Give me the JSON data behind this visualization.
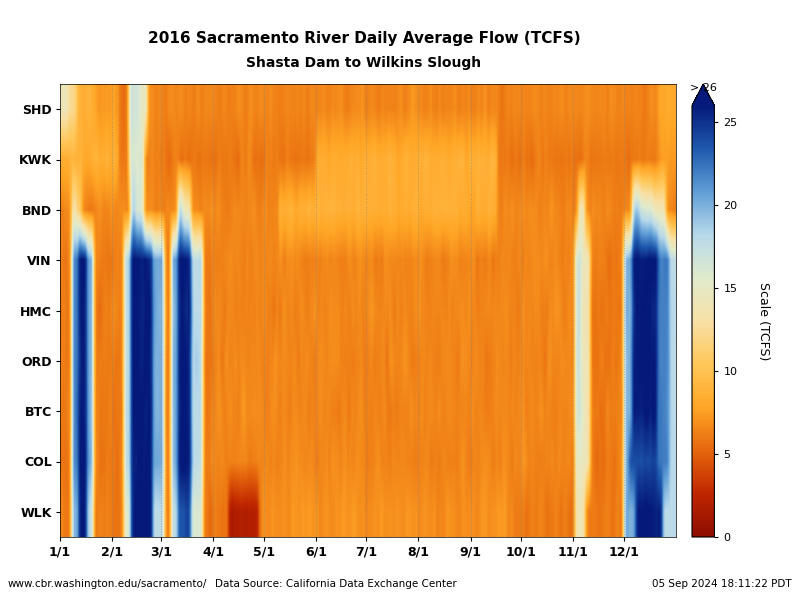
{
  "title_line1": "2016 Sacramento River Daily Average Flow (TCFS)",
  "title_line2": "Shasta Dam to Wilkins Slough",
  "locations": [
    "SHD",
    "KWK",
    "BND",
    "VIN",
    "HMC",
    "ORD",
    "BTC",
    "COL",
    "WLK"
  ],
  "month_labels": [
    "1/1",
    "2/1",
    "3/1",
    "4/1",
    "5/1",
    "6/1",
    "7/1",
    "8/1",
    "9/1",
    "10/1",
    "11/1",
    "12/1"
  ],
  "month_ticks": [
    0,
    31,
    60,
    91,
    121,
    152,
    182,
    213,
    244,
    274,
    305,
    335
  ],
  "colorbar_label": "Scale (TCFS)",
  "vmin": 0,
  "vmax": 26,
  "footer_left": "www.cbr.washington.edu/sacramento/",
  "footer_center": "Data Source: California Data Exchange Center",
  "footer_right": "05 Sep 2024 18:11:22 PDT",
  "background_color": "#ffffff",
  "colorbar_ticks": [
    0,
    5,
    10,
    15,
    20,
    25
  ],
  "colorbar_over_label": "> 26"
}
